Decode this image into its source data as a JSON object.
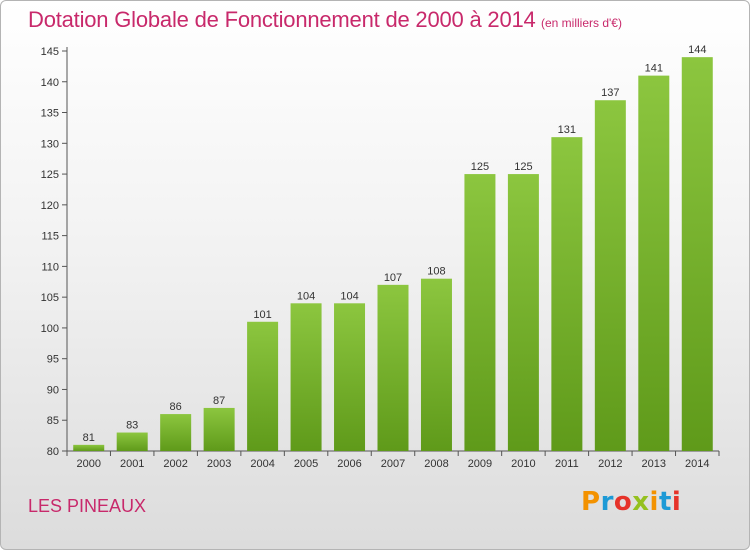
{
  "chart_data": {
    "type": "bar",
    "title": "Dotation Globale de Fonctionnement de 2000 à 2014",
    "subtitle": "(en milliers d'€)",
    "categories": [
      "2000",
      "2001",
      "2002",
      "2003",
      "2004",
      "2005",
      "2006",
      "2007",
      "2008",
      "2009",
      "2010",
      "2011",
      "2012",
      "2013",
      "2014"
    ],
    "values": [
      81,
      83,
      86,
      87,
      101,
      104,
      104,
      107,
      108,
      125,
      125,
      131,
      137,
      141,
      144
    ],
    "xlabel": "",
    "ylabel": "",
    "ylim": [
      80,
      145
    ],
    "yticks": [
      80,
      85,
      90,
      95,
      100,
      105,
      110,
      115,
      120,
      125,
      130,
      135,
      140,
      145
    ],
    "grid": false,
    "bar_color": "#8cc63f",
    "bar_color_dark": "#5f9a1a"
  },
  "footer": {
    "commune": "LES PINEAUX"
  },
  "logo": {
    "letters": [
      {
        "char": "P",
        "color": "#f39200"
      },
      {
        "char": "r",
        "color": "#1d9ad6"
      },
      {
        "char": "o",
        "color": "#e6332a"
      },
      {
        "char": "x",
        "color": "#95c11f"
      },
      {
        "char": "i",
        "color": "#f39200"
      },
      {
        "char": "t",
        "color": "#1d9ad6"
      },
      {
        "char": "i",
        "color": "#e6332a"
      }
    ]
  },
  "colors": {
    "accent": "#c8296b",
    "axis": "#555555"
  }
}
